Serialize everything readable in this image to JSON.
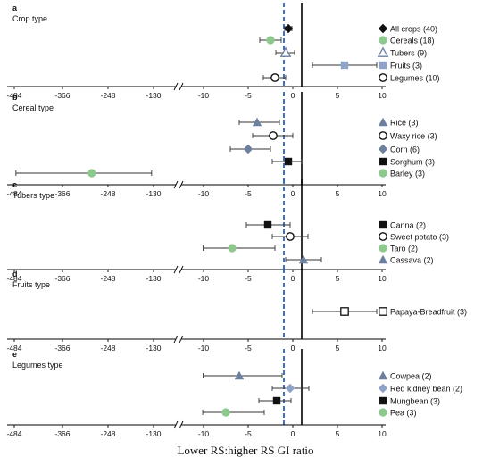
{
  "caption": "Lower RS:higher RS GI ratio",
  "colors": {
    "green": "#8cc98a",
    "blue_marker": "#8fa2c8",
    "slate": "#6d7f9e",
    "black": "#111111",
    "dashed_line": "#2f63b5",
    "solid_line": "#000000",
    "error_bar": "#333333"
  },
  "x_tick_labels": [
    "-484",
    "-366",
    "-248",
    "-130",
    "-10",
    "-5",
    "0",
    "5",
    "10"
  ],
  "chart_data": [
    {
      "type": "forest",
      "panel_label": "a",
      "title": "Crop type",
      "reference_lines": {
        "dashed": -1,
        "solid": 1
      },
      "series": [
        {
          "name": "All crops (40)",
          "marker": "diamond",
          "color": "#111111",
          "mean": -0.5,
          "ci": [
            -0.9,
            -0.1
          ]
        },
        {
          "name": "Cereals (18)",
          "marker": "circle",
          "color": "#8cc98a",
          "mean": -2.5,
          "ci": [
            -3.7,
            -1.3
          ]
        },
        {
          "name": "Tubers (9)",
          "marker": "triangle-open",
          "color": "#6d7f9e",
          "mean": -0.8,
          "ci": [
            -1.9,
            0.2
          ]
        },
        {
          "name": "Fruits (3)",
          "marker": "square",
          "color": "#8fa2c8",
          "mean": 5.8,
          "ci": [
            2.2,
            9.4
          ]
        },
        {
          "name": "Legumes (10)",
          "marker": "circle-open",
          "color": "#111111",
          "mean": -2.0,
          "ci": [
            -3.3,
            -0.8
          ]
        }
      ]
    },
    {
      "type": "forest",
      "panel_label": "b",
      "title": "Cereal type",
      "reference_lines": {
        "dashed": -1,
        "solid": 1
      },
      "series": [
        {
          "name": "Rice (3)",
          "marker": "triangle",
          "color": "#6d7f9e",
          "mean": -4.0,
          "ci": [
            -6.0,
            -1.5
          ]
        },
        {
          "name": "Waxy rice (3)",
          "marker": "circle-open",
          "color": "#111111",
          "mean": -2.2,
          "ci": [
            -4.5,
            0.0
          ]
        },
        {
          "name": "Corn (6)",
          "marker": "diamond",
          "color": "#6d7f9e",
          "mean": -5.0,
          "ci": [
            -7.0,
            -2.5
          ]
        },
        {
          "name": "Sorghum (3)",
          "marker": "square",
          "color": "#111111",
          "mean": -0.5,
          "ci": [
            -2.3,
            1.0
          ]
        },
        {
          "name": "Barley (3)",
          "marker": "circle",
          "color": "#8cc98a",
          "mean": -290,
          "ci": [
            -480,
            -135
          ]
        }
      ]
    },
    {
      "type": "forest",
      "panel_label": "c",
      "title": "Tubers type",
      "reference_lines": {
        "dashed": -1,
        "solid": 1
      },
      "series": [
        {
          "name": "Canna (2)",
          "marker": "square",
          "color": "#111111",
          "mean": -2.8,
          "ci": [
            -5.2,
            -0.3
          ]
        },
        {
          "name": "Sweet potato (3)",
          "marker": "circle-open",
          "color": "#111111",
          "mean": -0.3,
          "ci": [
            -2.3,
            1.7
          ]
        },
        {
          "name": "Taro (2)",
          "marker": "circle",
          "color": "#8cc98a",
          "mean": -6.8,
          "ci": [
            -11.0,
            -2.0
          ]
        },
        {
          "name": "Cassava (2)",
          "marker": "triangle",
          "color": "#6d7f9e",
          "mean": 1.2,
          "ci": [
            -0.8,
            3.2
          ]
        }
      ]
    },
    {
      "type": "forest",
      "panel_label": "d",
      "title": "Fruits type",
      "reference_lines": {
        "dashed": -1,
        "solid": 1
      },
      "series": [
        {
          "name": "Papaya-Breadfruit (3)",
          "marker": "square-open",
          "color": "#111111",
          "mean": 5.8,
          "ci": [
            2.2,
            9.4
          ]
        }
      ]
    },
    {
      "type": "forest",
      "panel_label": "e",
      "title": "Legumes type",
      "reference_lines": {
        "dashed": -1,
        "solid": 1
      },
      "series": [
        {
          "name": "Cowpea (2)",
          "marker": "triangle",
          "color": "#6d7f9e",
          "mean": -6.0,
          "ci": [
            -11.0,
            -1.2
          ]
        },
        {
          "name": "Red kidney bean (2)",
          "marker": "diamond",
          "color": "#8fa2c8",
          "mean": -0.3,
          "ci": [
            -2.3,
            1.8
          ]
        },
        {
          "name": "Mungbean (3)",
          "marker": "square",
          "color": "#111111",
          "mean": -1.8,
          "ci": [
            -3.8,
            -0.2
          ]
        },
        {
          "name": "Pea (3)",
          "marker": "circle",
          "color": "#8cc98a",
          "mean": -7.5,
          "ci": [
            -12.0,
            -3.2
          ]
        }
      ]
    }
  ]
}
